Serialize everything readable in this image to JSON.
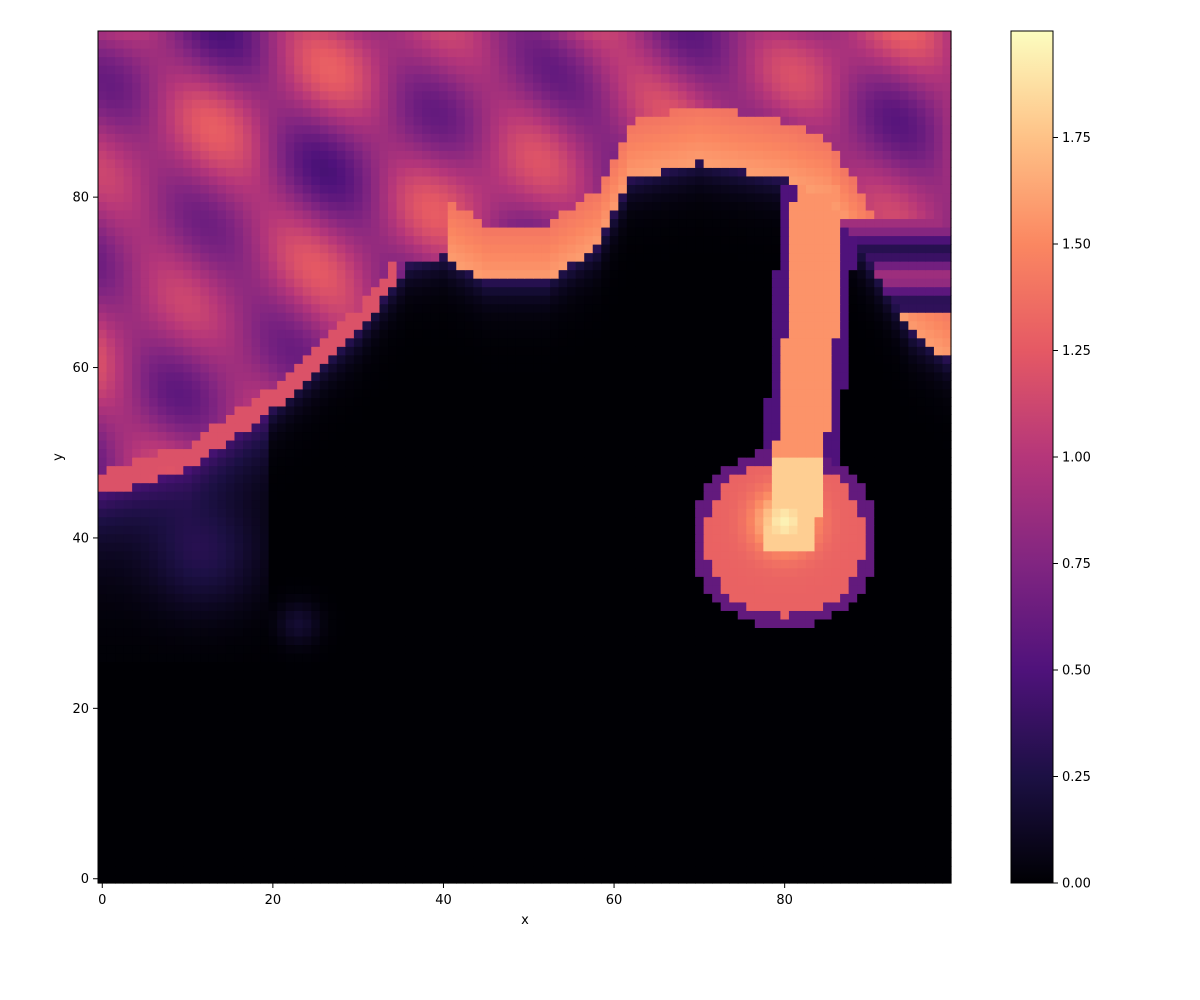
{
  "chart_data": {
    "type": "heatmap",
    "title": "",
    "xlabel": "x",
    "ylabel": "y",
    "xlim": [
      -0.5,
      99.5
    ],
    "ylim": [
      -0.5,
      99.5
    ],
    "x_ticks": [
      0,
      20,
      40,
      60,
      80
    ],
    "y_ticks": [
      0,
      20,
      40,
      60,
      80
    ],
    "x_tick_labels": [
      "0",
      "20",
      "40",
      "60",
      "80"
    ],
    "y_tick_labels": [
      "0",
      "20",
      "40",
      "60",
      "80"
    ],
    "grid": 100,
    "colormap": "magma",
    "colorbar": {
      "vmin": 0.0,
      "vmax": 2.0,
      "ticks": [
        0.0,
        0.25,
        0.5,
        0.75,
        1.0,
        1.25,
        1.5,
        1.75
      ],
      "tick_labels": [
        "0.00",
        "0.25",
        "0.50",
        "0.75",
        "1.00",
        "1.25",
        "1.50",
        "1.75"
      ]
    },
    "features": {
      "upper_band_value": 0.9,
      "dark_region_value": 0.0,
      "ridge_value": 1.6,
      "stem_value": 1.55,
      "blob_center": [
        80,
        40
      ],
      "blob_peak_value": 1.95,
      "faint_spot": [
        23,
        30
      ]
    }
  }
}
